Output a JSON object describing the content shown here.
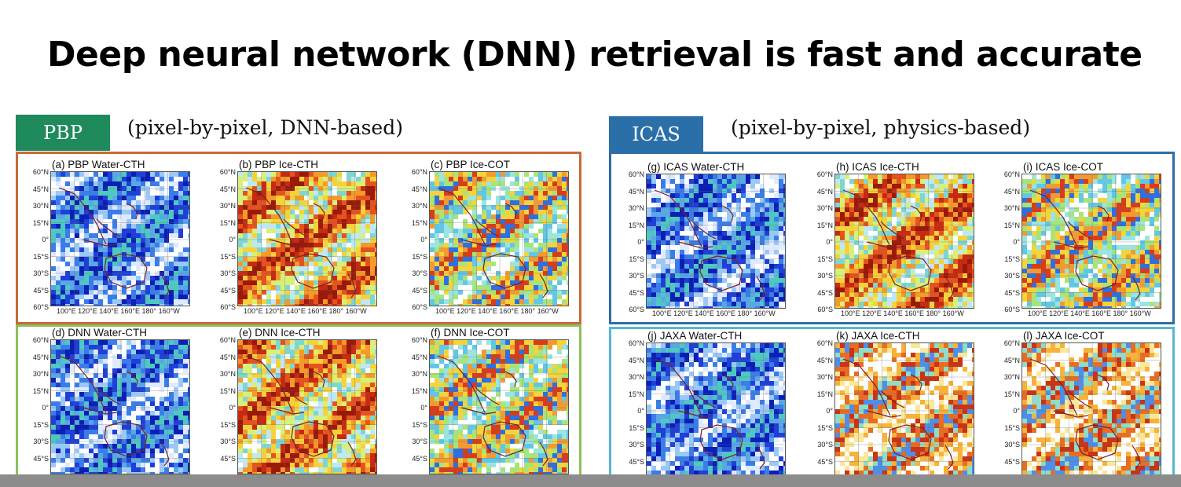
{
  "slide_title": "Deep neural network (DNN) retrieval is fast and accurate",
  "left_group": {
    "tag": "PBP",
    "description": "(pixel-by-pixel, DNN-based)",
    "rows": [
      {
        "frame_color": "#c8693a",
        "panels": [
          {
            "title": "(a) PBP Water-CTH",
            "palette": "water"
          },
          {
            "title": "(b) PBP Ice-CTH",
            "palette": "icecth"
          },
          {
            "title": "(c) PBP Ice-COT",
            "palette": "icecot"
          }
        ]
      },
      {
        "frame_color": "#8dc25b",
        "panels": [
          {
            "title": "(d) DNN Water-CTH",
            "palette": "water"
          },
          {
            "title": "(e) DNN Ice-CTH",
            "palette": "icecth"
          },
          {
            "title": "(f) DNN Ice-COT",
            "palette": "icecot"
          }
        ]
      }
    ]
  },
  "right_group": {
    "tag": "ICAS",
    "description": "(pixel-by-pixel, physics-based)",
    "rows": [
      {
        "frame_color": "#2d6ea6",
        "panels": [
          {
            "title": "(g) ICAS Water-CTH",
            "palette": "water"
          },
          {
            "title": "(h) ICAS Ice-CTH",
            "palette": "icecth"
          },
          {
            "title": "(i) ICAS Ice-COT",
            "palette": "icecot"
          }
        ]
      },
      {
        "frame_color": "#57b7cf",
        "panels": [
          {
            "title": "(j) JAXA Water-CTH",
            "palette": "water"
          },
          {
            "title": "(k) JAXA Ice-CTH",
            "palette": "jaxa"
          },
          {
            "title": "(l) JAXA Ice-COT",
            "palette": "jaxa"
          }
        ]
      }
    ]
  },
  "lat_labels_full": [
    "60°N",
    "45°N",
    "30°N",
    "15°N",
    "0°",
    "15°S",
    "30°S",
    "45°S",
    "60°S"
  ],
  "lat_labels_cut": [
    "60°N",
    "45°N",
    "30°N",
    "15°N",
    "0°",
    "15°S",
    "30°S",
    "45°S"
  ],
  "lon_labels": "100°E 120°E 140°E 160°E 180° 160°W",
  "colors": {
    "pbp_tag": "#1f8a5c",
    "icas_tag": "#2b6fa8",
    "bottom_bar": "#8c8c8c"
  }
}
